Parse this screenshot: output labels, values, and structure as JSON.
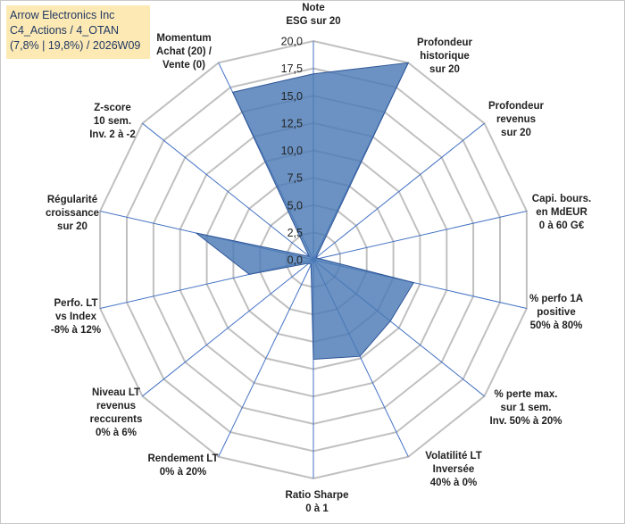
{
  "header": {
    "line1": "Arrow Electronics Inc",
    "line2": "C4_Actions / 4_OTAN",
    "line3": "(7,8% | 19,8%) / 2026W09"
  },
  "colors": {
    "fill": "#4a7ab5",
    "stroke": "#2f5597",
    "grid": "#c0c0c0",
    "spoke": "#4472c4"
  },
  "chart_data": {
    "type": "radar",
    "rmax": 20,
    "ticks": [
      "0,0",
      "2,5",
      "5,0",
      "7,5",
      "10,0",
      "12,5",
      "15,0",
      "17,5",
      "20,0"
    ],
    "axes": [
      {
        "label": [
          "Note",
          "ESG sur 20"
        ],
        "value": 17.0
      },
      {
        "label": [
          "Profondeur",
          "historique",
          "sur 20"
        ],
        "value": 20.0
      },
      {
        "label": [
          "Profondeur",
          "revenus",
          "sur 20"
        ],
        "value": 0.3
      },
      {
        "label": [
          "Capi. bours.",
          "en MdEUR",
          "0 à 60 G€"
        ],
        "value": 0.5
      },
      {
        "label": [
          "% perfo 1A",
          "positive",
          "50% à 80%"
        ],
        "value": 9.4
      },
      {
        "label": [
          "% perte max.",
          "sur 1 sem.",
          "Inv. 50% à 20%"
        ],
        "value": 9.0
      },
      {
        "label": [
          "Volatilité LT",
          "Inversée",
          "40% à 0%"
        ],
        "value": 9.8
      },
      {
        "label": [
          "Ratio Sharpe",
          "0 à 1"
        ],
        "value": 9.1
      },
      {
        "label": [
          "Rendement LT",
          "0% à 20%"
        ],
        "value": 0.5
      },
      {
        "label": [
          "Niveau LT",
          "revenus",
          "reccurents",
          "0% à 6%"
        ],
        "value": 0.5
      },
      {
        "label": [
          "Perfo. LT",
          "vs Index",
          "-8% à 12%"
        ],
        "value": 6.0
      },
      {
        "label": [
          "Régularité",
          "croissance",
          "sur 20"
        ],
        "value": 11.0
      },
      {
        "label": [
          "Z-score",
          "10 sem.",
          "Inv. 2 à -2"
        ],
        "value": 0.5
      },
      {
        "label": [
          "Momentum",
          "Achat (20) /",
          "Vente (0)"
        ],
        "value": 17.0
      }
    ]
  }
}
